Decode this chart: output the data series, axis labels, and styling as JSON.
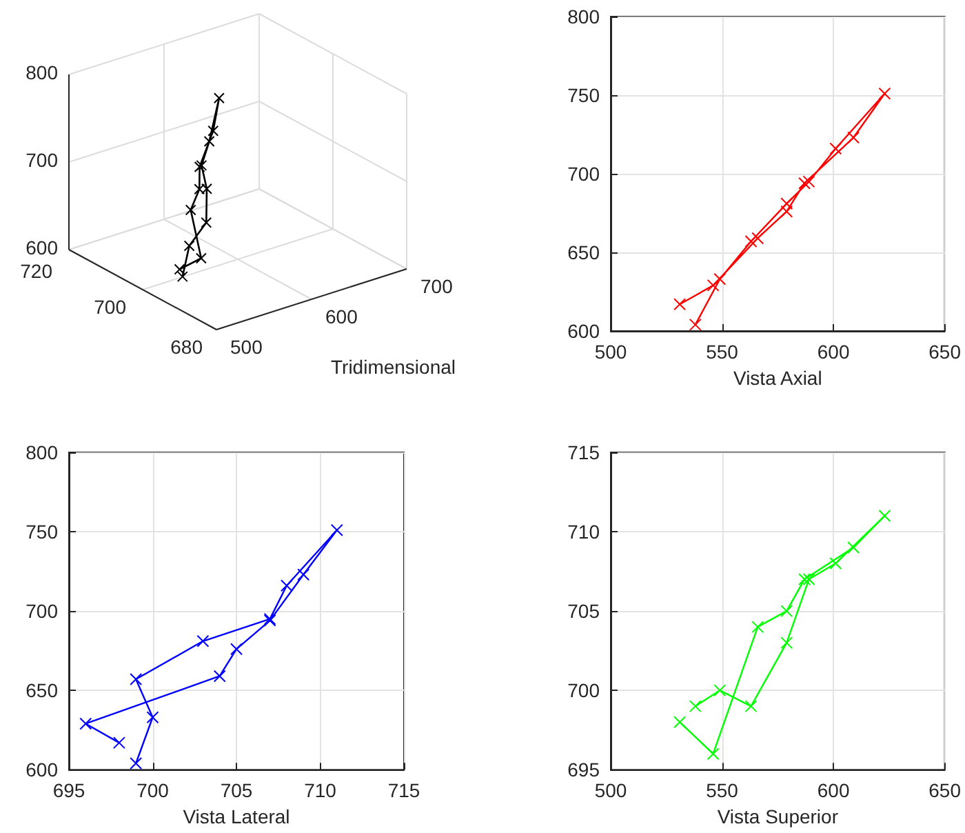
{
  "chart_data": [
    {
      "type": "other",
      "xlabel": "Tridimensional",
      "annotations": [
        "800",
        "700",
        "600",
        "720",
        "700",
        "680",
        "500",
        "600",
        "700"
      ]
    },
    {
      "type": "line",
      "xlabel": "Vista Axial",
      "xlim": [
        500,
        650
      ],
      "xticks": [
        500,
        550,
        600,
        650
      ],
      "ylim": [
        600,
        800
      ],
      "yticks": [
        600,
        650,
        700,
        750,
        800
      ],
      "grid": true,
      "marker": "cross",
      "line_style": "solid",
      "series": [
        {
          "color": "#ff0000",
          "x": [
            538,
            549,
            563,
            579,
            589,
            601,
            623,
            609,
            587,
            579,
            566,
            546,
            531
          ],
          "values": [
            604,
            633,
            657,
            681,
            695,
            716,
            751,
            723,
            694,
            676,
            659,
            629,
            617
          ]
        }
      ]
    },
    {
      "type": "line",
      "xlabel": "Vista Lateral",
      "xlim": [
        695,
        715
      ],
      "xticks": [
        695,
        700,
        705,
        710,
        715
      ],
      "ylim": [
        600,
        800
      ],
      "yticks": [
        600,
        650,
        700,
        750,
        800
      ],
      "grid": true,
      "marker": "cross",
      "line_style": "solid",
      "series": [
        {
          "color": "#0000ff",
          "x": [
            699,
            700,
            699,
            703,
            707,
            708,
            711,
            709,
            707,
            705,
            704,
            696,
            698
          ],
          "values": [
            604,
            633,
            657,
            681,
            695,
            716,
            751,
            723,
            694,
            676,
            659,
            629,
            617
          ]
        }
      ]
    },
    {
      "type": "line",
      "xlabel": "Vista Superior",
      "xlim": [
        500,
        650
      ],
      "xticks": [
        500,
        550,
        600,
        650
      ],
      "ylim": [
        695,
        715
      ],
      "yticks": [
        695,
        700,
        705,
        710,
        715
      ],
      "grid": true,
      "marker": "cross",
      "line_style": "solid",
      "series": [
        {
          "color": "#00ff00",
          "x": [
            538,
            549,
            563,
            579,
            589,
            601,
            623,
            609,
            587,
            579,
            566,
            546,
            531
          ],
          "values": [
            699,
            700,
            699,
            703,
            707,
            708,
            711,
            709,
            707,
            705,
            704,
            696,
            698
          ]
        }
      ]
    }
  ]
}
